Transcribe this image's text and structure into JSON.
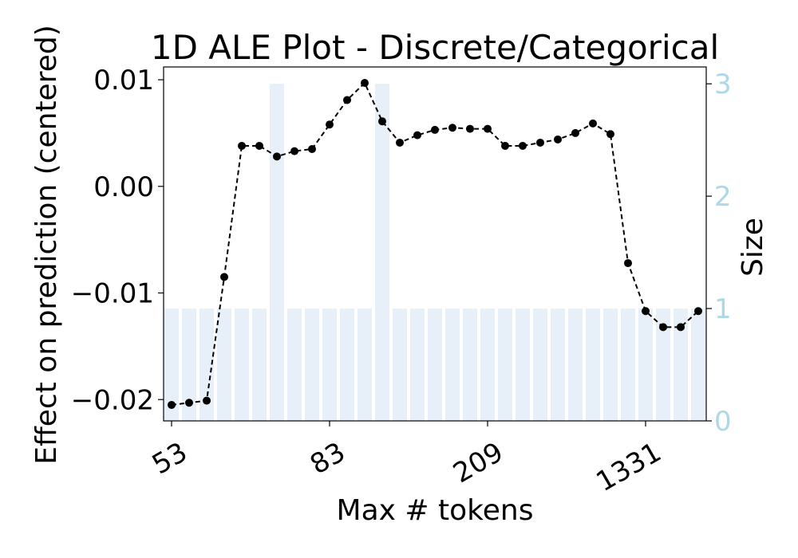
{
  "chart_data": {
    "type": "line",
    "title": "1D ALE Plot - Discrete/Categorical",
    "xlabel": "Max # tokens",
    "ylabel": "Effect on prediction (centered)",
    "y2label": "Size",
    "x_tick_labels": [
      "53",
      "83",
      "209",
      "1331"
    ],
    "x_tick_indices": [
      0,
      9,
      18,
      27
    ],
    "y_ticks": [
      0.01,
      0.0,
      -0.01,
      -0.02
    ],
    "y_tick_labels": [
      "0.01",
      "0.00",
      "−0.01",
      "−0.02"
    ],
    "y_range": [
      -0.022,
      0.0112
    ],
    "y2_ticks": [
      0,
      1,
      2,
      3
    ],
    "y2_tick_labels": [
      "0",
      "1",
      "2",
      "3"
    ],
    "y2_range": [
      0,
      3.15
    ],
    "grid": false,
    "legend": "none",
    "series": [
      {
        "values": [
          -0.0205,
          -0.0203,
          -0.0201,
          -0.0085,
          0.0038,
          0.0038,
          0.0028,
          0.0033,
          0.0035,
          0.0058,
          0.0081,
          0.0097,
          0.0061,
          0.0041,
          0.0048,
          0.0053,
          0.0055,
          0.0054,
          0.0054,
          0.0038,
          0.0038,
          0.0041,
          0.0044,
          0.005,
          0.0059,
          0.0049,
          -0.0072,
          -0.0117,
          -0.0132,
          -0.0132,
          -0.0117
        ],
        "color": "#000000",
        "style": "dashed-with-dots"
      }
    ],
    "size_bars": {
      "values": [
        1,
        1,
        1,
        1,
        1,
        1,
        3,
        1,
        1,
        1,
        1,
        1,
        3,
        1,
        1,
        1,
        1,
        1,
        1,
        1,
        1,
        1,
        1,
        1,
        1,
        1,
        1,
        1,
        1,
        1,
        1
      ],
      "color": "#e7eff8"
    },
    "y2_tick_color": "#add8e6"
  }
}
